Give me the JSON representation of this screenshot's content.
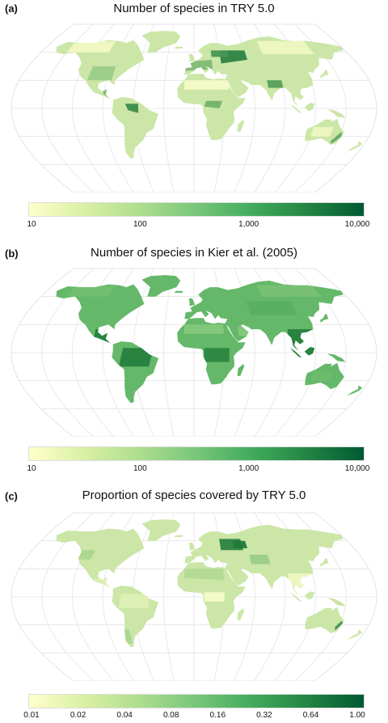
{
  "panels": [
    {
      "letter": "(a)",
      "title": "Number of species in TRY 5.0",
      "colors": {
        "ocean": "#ffffff",
        "grid": "#e4e4e4",
        "low": "#ffffcc",
        "mid": "#a9d68e",
        "high": "#1f7a3a"
      },
      "legend": {
        "scale": "log",
        "range": [
          10,
          10000
        ],
        "ticks": [
          "10",
          "100",
          "1,000",
          "10,000"
        ],
        "colors": [
          "#ffffcc",
          "#d9f0a3",
          "#addd8e",
          "#78c679",
          "#41ab5d",
          "#238443",
          "#005a32"
        ]
      }
    },
    {
      "letter": "(b)",
      "title": "Number of species in Kier et al. (2005)",
      "colors": {
        "ocean": "#ffffff",
        "grid": "#e4e4e4",
        "low": "#9fd38b",
        "mid": "#5fb565",
        "high": "#1f7a3a"
      },
      "legend": {
        "scale": "log",
        "range": [
          10,
          10000
        ],
        "ticks": [
          "10",
          "100",
          "1,000",
          "10,000"
        ],
        "colors": [
          "#ffffcc",
          "#d9f0a3",
          "#addd8e",
          "#78c679",
          "#41ab5d",
          "#238443",
          "#005a32"
        ]
      }
    },
    {
      "letter": "(c)",
      "title": "Proportion of species covered by TRY 5.0",
      "colors": {
        "ocean": "#ffffff",
        "grid": "#e4e4e4",
        "low": "#ffffcc",
        "mid": "#a9d68e",
        "high": "#1f7a3a"
      },
      "legend": {
        "scale": "log2",
        "range": [
          0.01,
          1.0
        ],
        "ticks": [
          "0.01",
          "0.02",
          "0.04",
          "0.08",
          "0.16",
          "0.32",
          "0.64",
          "1.00"
        ],
        "colors": [
          "#ffffcc",
          "#d9f0a3",
          "#addd8e",
          "#78c679",
          "#41ab5d",
          "#238443",
          "#005a32"
        ]
      }
    }
  ]
}
